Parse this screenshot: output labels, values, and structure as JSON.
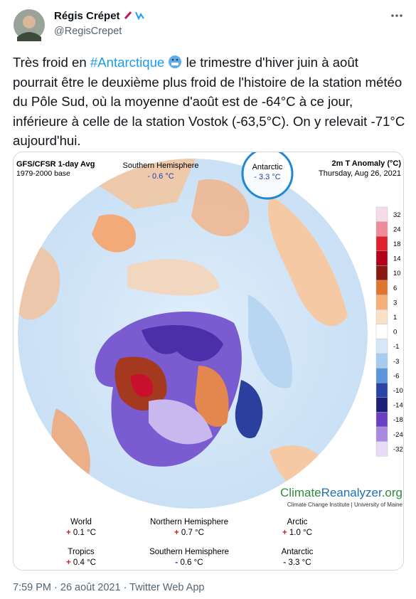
{
  "header": {
    "name": "Régis Crépet",
    "handle": "@RegisCrepet"
  },
  "tweet": {
    "before": "Très froid en ",
    "hashtag": "#Antarctique",
    "after": " le trimestre d'hiver juin à août pourrait être le deuxième plus froid de l'histoire de la station météo du Pôle Sud, où la moyenne d'août est de -64°C à ce jour, inférieure à celle de la station Vostok (-63,5°C). On y relevait -71°C aujourd'hui."
  },
  "map": {
    "source": "GFS/CFSR 1-day Avg",
    "base": "1979-2000 base",
    "region": "Southern Hemisphere",
    "region_value": "- 0.6 °C",
    "highlight": "Antarctic",
    "highlight_value": "- 3.3 °C",
    "variable": "2m T Anomaly (°C)",
    "date": "Thursday, Aug 26, 2021",
    "colorbar": [
      32,
      24,
      18,
      14,
      10,
      6,
      3,
      1,
      0,
      -1,
      -3,
      -6,
      -10,
      -14,
      -18,
      -24,
      -32
    ],
    "brand": [
      "Climate",
      "Reanalyzer",
      ".org"
    ],
    "credit": "Climate Change Institute | University of Maine",
    "stats": [
      {
        "label": "World",
        "sign": "+",
        "value": "0.1 °C"
      },
      {
        "label": "Northern Hemisphere",
        "sign": "+",
        "value": "0.7 °C"
      },
      {
        "label": "Arctic",
        "sign": "+",
        "value": "1.0 °C"
      },
      {
        "label": "Tropics",
        "sign": "+",
        "value": "0.4 °C"
      },
      {
        "label": "Southern Hemisphere",
        "sign": "-",
        "value": "0.6 °C"
      },
      {
        "label": "Antarctic",
        "sign": "-",
        "value": "3.3 °C"
      }
    ]
  },
  "footer": "7:59 PM · 26 août 2021 · Twitter Web App"
}
